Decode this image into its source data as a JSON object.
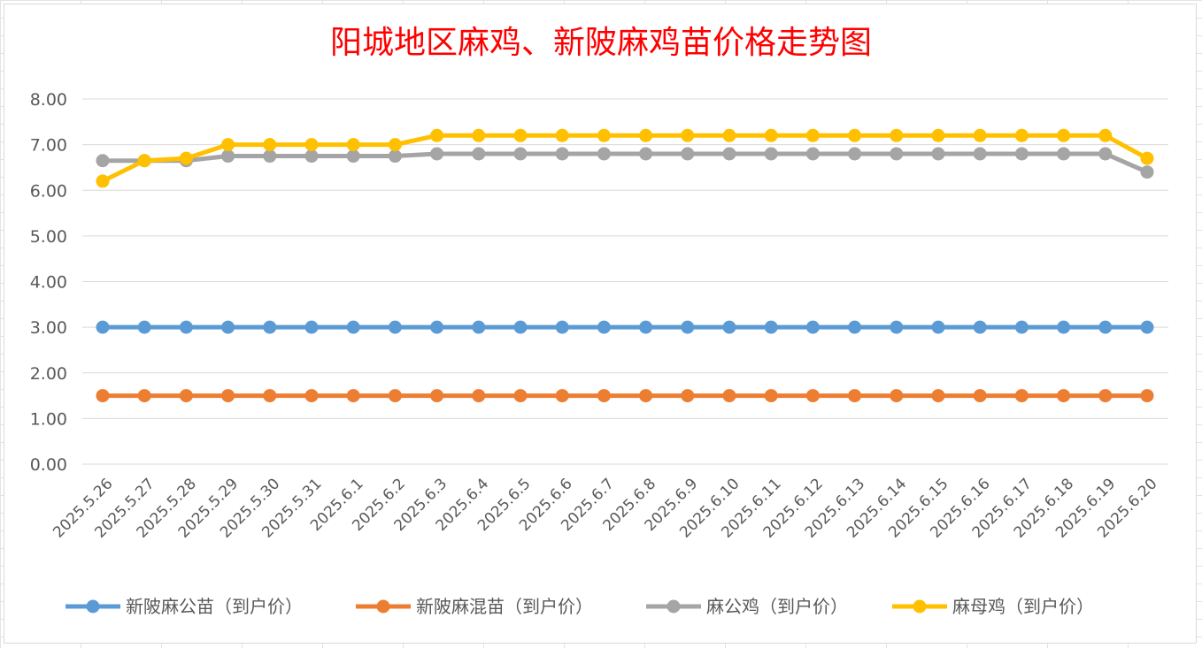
{
  "chart_data": {
    "type": "line",
    "title": "阳城地区麻鸡、新陂麻鸡苗价格走势图",
    "xlabel": "",
    "ylabel": "",
    "ylim": [
      0,
      8
    ],
    "yticks": [
      "0.00",
      "1.00",
      "2.00",
      "3.00",
      "4.00",
      "5.00",
      "6.00",
      "7.00",
      "8.00"
    ],
    "grid": true,
    "legend_position": "bottom",
    "categories": [
      "2025.5.26",
      "2025.5.27",
      "2025.5.28",
      "2025.5.29",
      "2025.5.30",
      "2025.5.31",
      "2025.6.1",
      "2025.6.2",
      "2025.6.3",
      "2025.6.4",
      "2025.6.5",
      "2025.6.6",
      "2025.6.7",
      "2025.6.8",
      "2025.6.9",
      "2025.6.10",
      "2025.6.11",
      "2025.6.12",
      "2025.6.13",
      "2025.6.14",
      "2025.6.15",
      "2025.6.16",
      "2025.6.17",
      "2025.6.18",
      "2025.6.19",
      "2025.6.20"
    ],
    "series": [
      {
        "name": "新陂麻公苗（到户价）",
        "color": "#5b9bd5",
        "values": [
          3,
          3,
          3,
          3,
          3,
          3,
          3,
          3,
          3,
          3,
          3,
          3,
          3,
          3,
          3,
          3,
          3,
          3,
          3,
          3,
          3,
          3,
          3,
          3,
          3,
          3
        ]
      },
      {
        "name": "新陂麻混苗（到户价）",
        "color": "#ed7d31",
        "values": [
          1.5,
          1.5,
          1.5,
          1.5,
          1.5,
          1.5,
          1.5,
          1.5,
          1.5,
          1.5,
          1.5,
          1.5,
          1.5,
          1.5,
          1.5,
          1.5,
          1.5,
          1.5,
          1.5,
          1.5,
          1.5,
          1.5,
          1.5,
          1.5,
          1.5,
          1.5
        ]
      },
      {
        "name": "麻公鸡（到户价）",
        "color": "#a5a5a5",
        "values": [
          6.65,
          6.65,
          6.65,
          6.75,
          6.75,
          6.75,
          6.75,
          6.75,
          6.8,
          6.8,
          6.8,
          6.8,
          6.8,
          6.8,
          6.8,
          6.8,
          6.8,
          6.8,
          6.8,
          6.8,
          6.8,
          6.8,
          6.8,
          6.8,
          6.8,
          6.4
        ]
      },
      {
        "name": "麻母鸡（到户价）",
        "color": "#ffc000",
        "values": [
          6.2,
          6.65,
          6.7,
          7.0,
          7.0,
          7.0,
          7.0,
          7.0,
          7.2,
          7.2,
          7.2,
          7.2,
          7.2,
          7.2,
          7.2,
          7.2,
          7.2,
          7.2,
          7.2,
          7.2,
          7.2,
          7.2,
          7.2,
          7.2,
          7.2,
          6.7
        ]
      }
    ]
  }
}
